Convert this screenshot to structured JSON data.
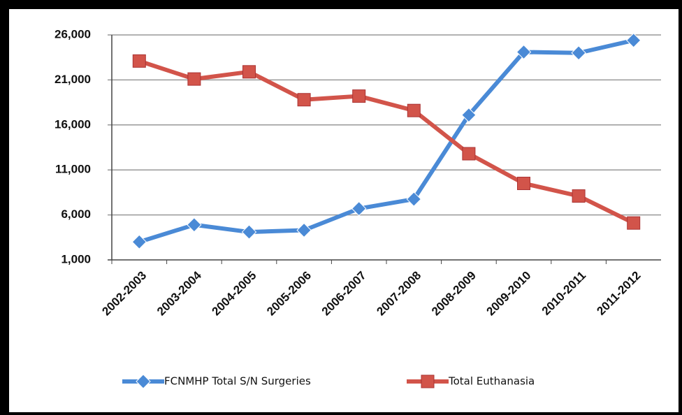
{
  "chart_data": {
    "type": "line",
    "categories": [
      "2002-2003",
      "2003-2004",
      "2004-2005",
      "2005-2006",
      "2006-2007",
      "2007-2008",
      "2008-2009",
      "2009-2010",
      "2010-2011",
      "2011-2012"
    ],
    "series": [
      {
        "name": "FCNMHP Total S/N Surgeries",
        "color": "#4a8ad6",
        "marker": "diamond",
        "values": [
          3000,
          4900,
          4100,
          4300,
          6700,
          7750,
          17100,
          24100,
          24000,
          25400
        ]
      },
      {
        "name": "Total Euthanasia",
        "color": "#d2544a",
        "marker": "square",
        "values": [
          23100,
          21100,
          21900,
          18800,
          19200,
          17600,
          12800,
          9500,
          8100,
          5100
        ]
      }
    ],
    "ylim": [
      1000,
      26000
    ],
    "yticks": [
      {
        "value": 1000,
        "label": "1,000"
      },
      {
        "value": 6000,
        "label": "6,000"
      },
      {
        "value": 11000,
        "label": "11,000"
      },
      {
        "value": 16000,
        "label": "16,000"
      },
      {
        "value": 21000,
        "label": "21,000"
      },
      {
        "value": 26000,
        "label": "26,000"
      }
    ],
    "grid": true,
    "legend": "bottom"
  }
}
